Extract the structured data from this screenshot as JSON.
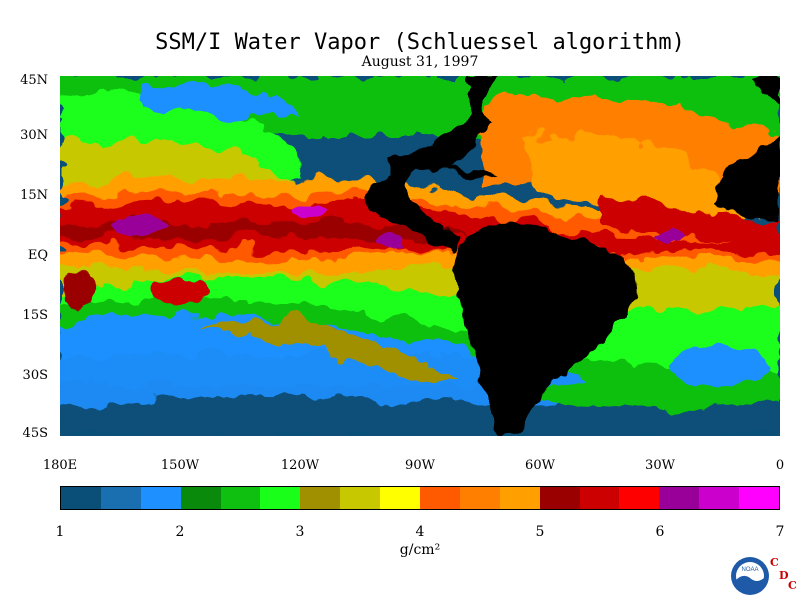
{
  "title": "SSM/I Water Vapor (Schluessel algorithm)",
  "subtitle": "August 31, 1997",
  "lat_labels": [
    "45N",
    "30N",
    "15N",
    "EQ",
    "15S",
    "30S",
    "45S"
  ],
  "lon_labels": [
    "180E",
    "150W",
    "120W",
    "90W",
    "60W",
    "30W",
    "0"
  ],
  "colorbar": {
    "ticks": [
      "1",
      "2",
      "3",
      "4",
      "5",
      "6",
      "7"
    ],
    "unit": "g/cm²",
    "colors": [
      "#0a4f78",
      "#1a6fb0",
      "#1e90ff",
      "#0a8a0a",
      "#10c010",
      "#1aff1a",
      "#a09000",
      "#c8c800",
      "#ffff00",
      "#ff5a00",
      "#ff8000",
      "#ffa000",
      "#9a0000",
      "#cc0000",
      "#ff0000",
      "#990099",
      "#cc00cc",
      "#ff00ff"
    ]
  },
  "logo": {
    "text": "NOAA",
    "icon": "noaa-logo"
  },
  "org_letters": {
    "c1": "C",
    "d": "D",
    "c2": "C"
  }
}
